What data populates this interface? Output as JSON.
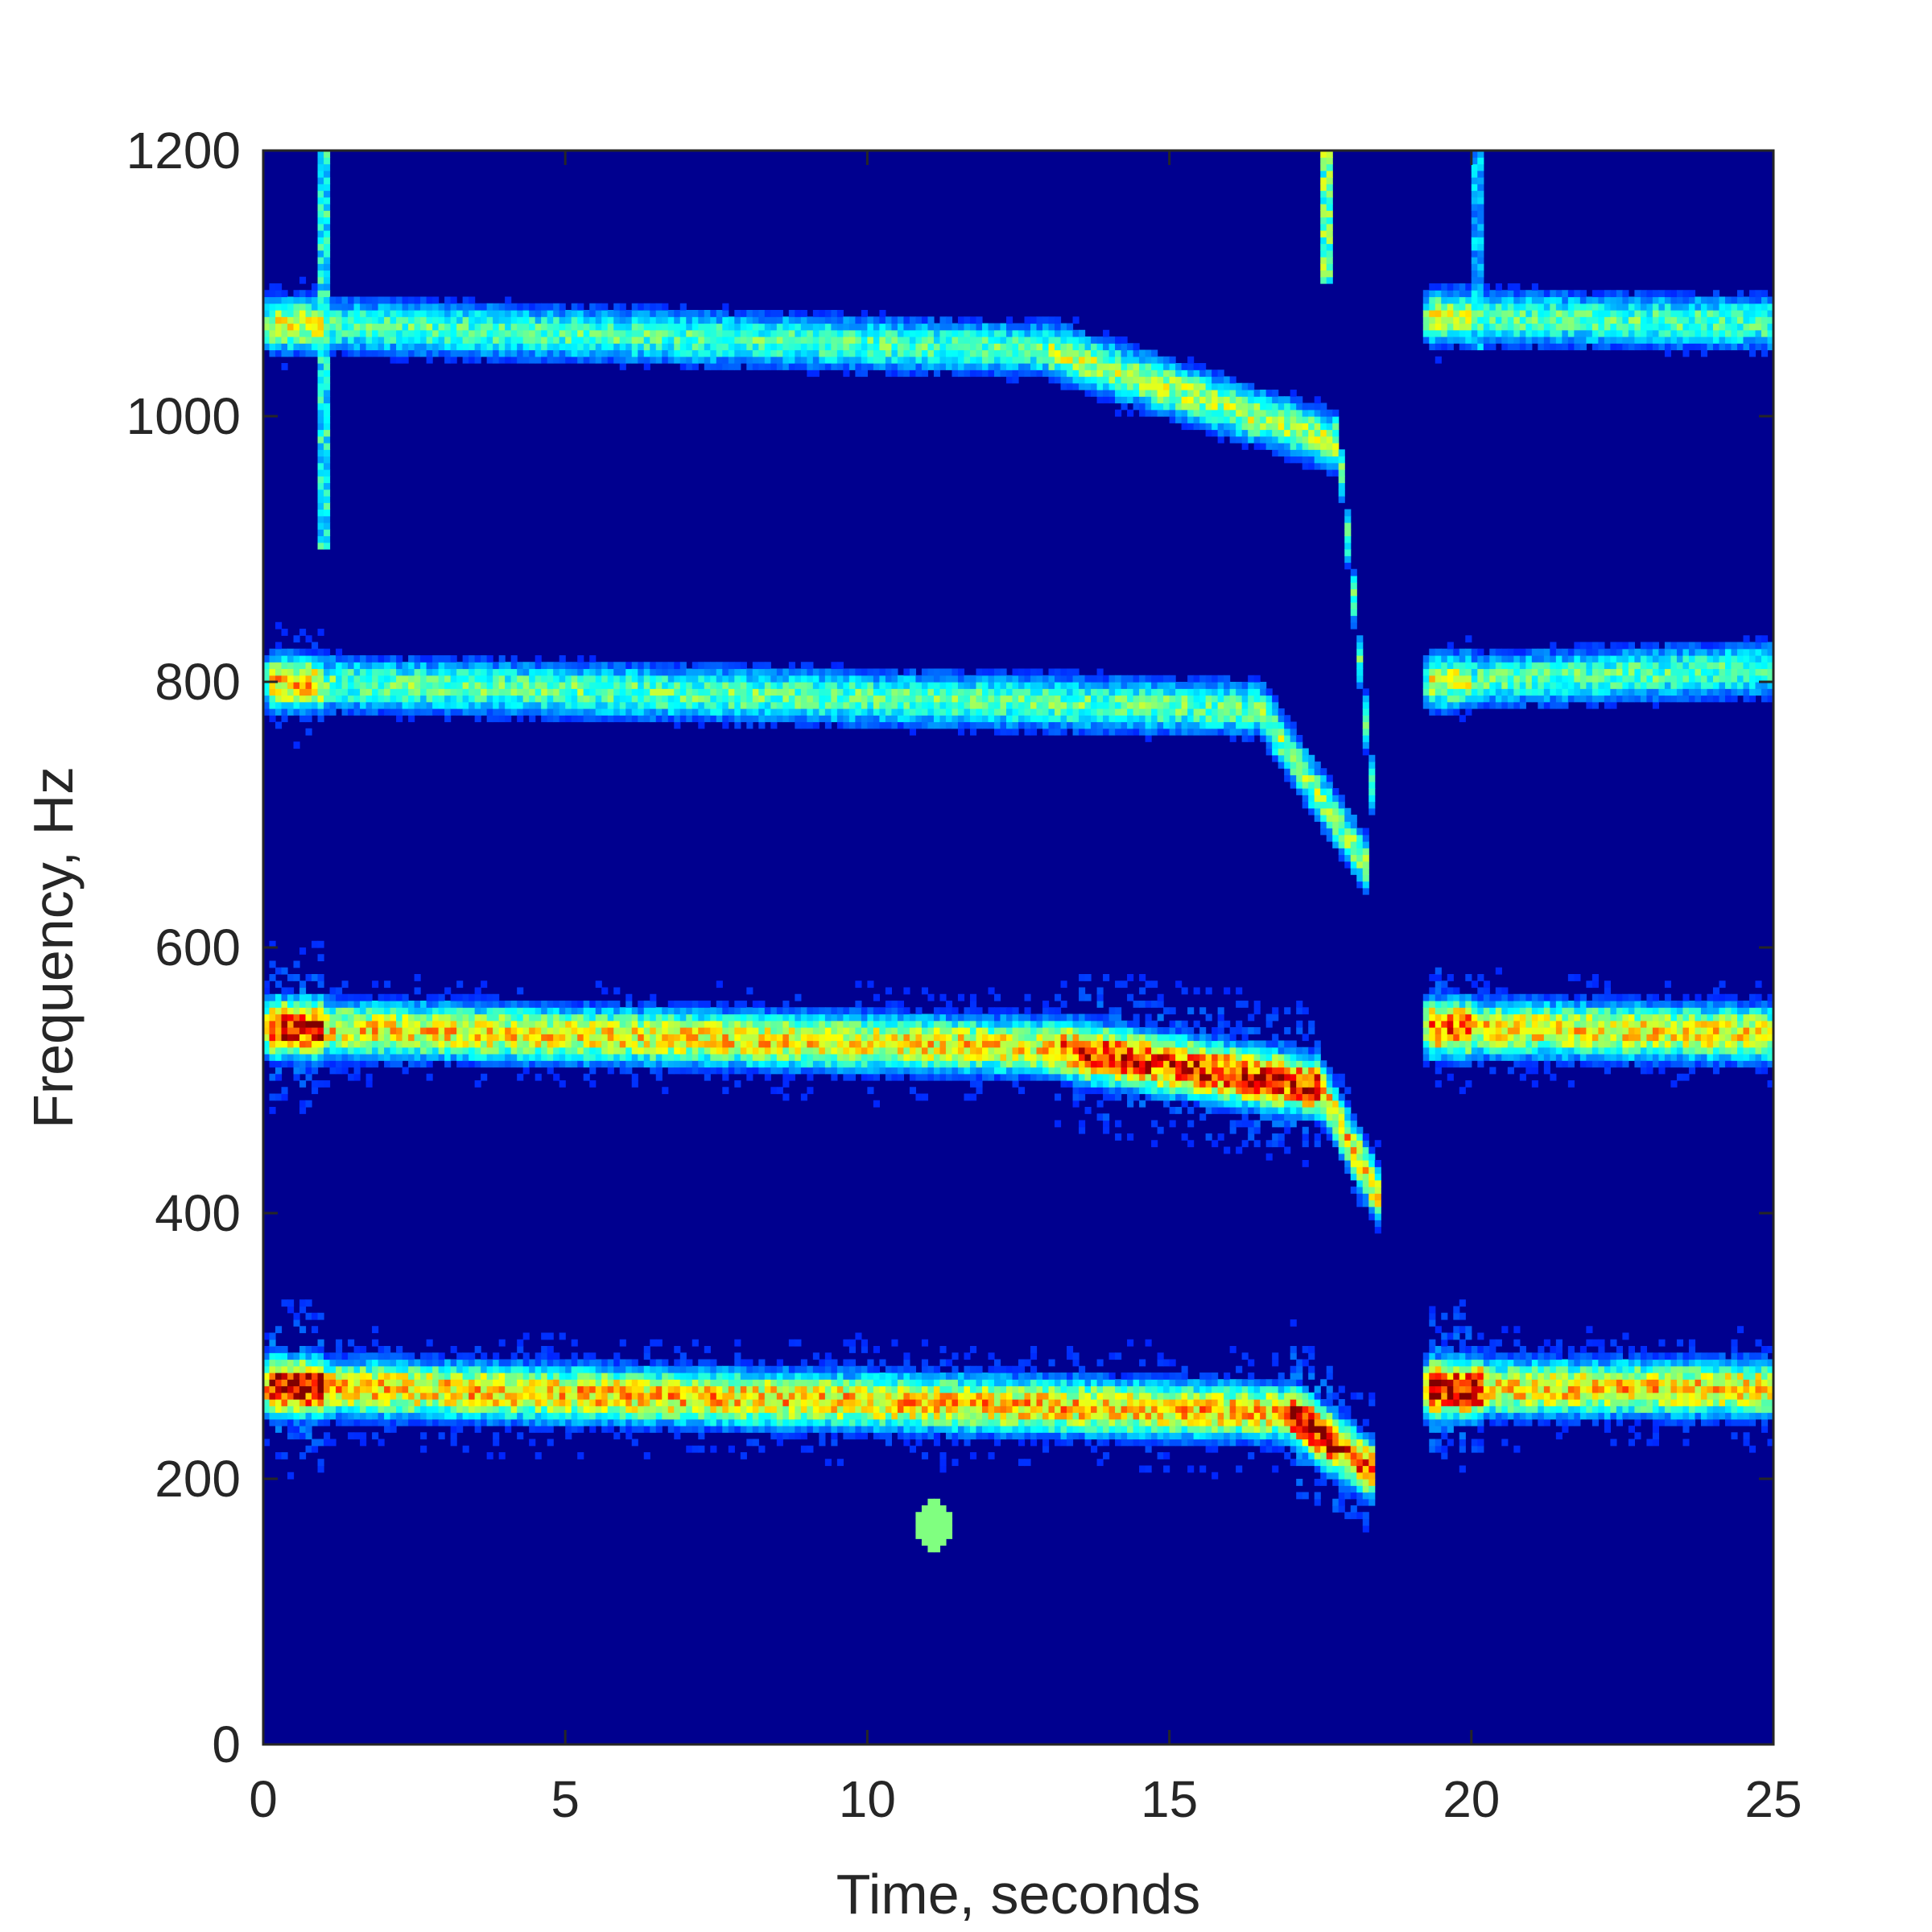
{
  "chart_data": {
    "type": "heatmap",
    "subtype": "spectrogram",
    "xlabel": "Time, seconds",
    "ylabel": "Frequency, Hz",
    "xlim": [
      0,
      25
    ],
    "ylim": [
      0,
      1200
    ],
    "xticks": [
      0,
      5,
      10,
      15,
      20,
      25
    ],
    "yticks": [
      0,
      200,
      400,
      600,
      800,
      1000,
      1200
    ],
    "xtick_labels": [
      "0",
      "5",
      "10",
      "15",
      "20",
      "25"
    ],
    "ytick_labels": [
      "0",
      "200",
      "400",
      "600",
      "800",
      "1000",
      "1200"
    ],
    "colormap": "jet",
    "background_color": "#00008f",
    "grid": false,
    "legend": "none",
    "features": [
      {
        "kind": "tonal",
        "t_start": 0,
        "t_end": 17.0,
        "f_start": 270,
        "f_end": 250,
        "intensity": 0.72,
        "peak": 1.0,
        "peak_range": [
          0.1,
          1.0
        ]
      },
      {
        "kind": "tonal",
        "t_start": 17.0,
        "t_end": 18.4,
        "f_start": 250,
        "f_end": 205,
        "intensity": 0.85,
        "peak": 1.0,
        "peak_range": [
          17.0,
          17.8
        ]
      },
      {
        "kind": "tonal",
        "t_start": 19.2,
        "t_end": 25,
        "f_start": 268,
        "f_end": 268,
        "intensity": 0.7,
        "peak": 1.0,
        "peak_range": [
          19.3,
          20.2
        ]
      },
      {
        "kind": "tonal",
        "t_start": 0,
        "t_end": 13.0,
        "f_start": 540,
        "f_end": 525,
        "intensity": 0.68,
        "peak": 0.95,
        "peak_range": [
          0.1,
          1.0
        ]
      },
      {
        "kind": "tonal",
        "t_start": 13.0,
        "t_end": 17.5,
        "f_start": 525,
        "f_end": 495,
        "intensity": 0.82,
        "peak": 0.92,
        "peak_range": [
          13.5,
          17.5
        ]
      },
      {
        "kind": "tonal",
        "t_start": 17.5,
        "t_end": 18.5,
        "f_start": 495,
        "f_end": 410,
        "intensity": 0.7,
        "peak": 0.7,
        "peak_range": [
          17.5,
          17.5
        ]
      },
      {
        "kind": "tonal",
        "t_start": 19.2,
        "t_end": 25,
        "f_start": 540,
        "f_end": 535,
        "intensity": 0.68,
        "peak": 0.85,
        "peak_range": [
          19.3,
          20.0
        ]
      },
      {
        "kind": "tonal",
        "t_start": 0,
        "t_end": 16.5,
        "f_start": 800,
        "f_end": 780,
        "intensity": 0.5,
        "peak": 0.7,
        "peak_range": [
          0.1,
          1.0
        ]
      },
      {
        "kind": "tonal",
        "t_start": 16.5,
        "t_end": 18.3,
        "f_start": 780,
        "f_end": 660,
        "intensity": 0.55,
        "peak": 0.55,
        "peak_range": [
          16.5,
          16.5
        ]
      },
      {
        "kind": "tonal",
        "t_start": 19.2,
        "t_end": 25,
        "f_start": 800,
        "f_end": 810,
        "intensity": 0.48,
        "peak": 0.62,
        "peak_range": [
          19.3,
          20.0
        ]
      },
      {
        "kind": "tonal",
        "t_start": 0,
        "t_end": 13.0,
        "f_start": 1070,
        "f_end": 1050,
        "intensity": 0.48,
        "peak": 0.62,
        "peak_range": [
          0.1,
          1.0
        ]
      },
      {
        "kind": "tonal",
        "t_start": 13.0,
        "t_end": 17.8,
        "f_start": 1050,
        "f_end": 980,
        "intensity": 0.58,
        "peak": 0.58,
        "peak_range": [
          13.0,
          13.0
        ]
      },
      {
        "kind": "tonal",
        "t_start": 17.8,
        "t_end": 18.4,
        "f_start": 980,
        "f_end": 700,
        "intensity": 0.5,
        "peak": 0.5,
        "peak_range": [
          17.8,
          17.8
        ]
      },
      {
        "kind": "tonal",
        "t_start": 19.2,
        "t_end": 25,
        "f_start": 1075,
        "f_end": 1070,
        "intensity": 0.48,
        "peak": 0.6,
        "peak_range": [
          19.3,
          20.0
        ]
      },
      {
        "kind": "transient",
        "t": 1.0,
        "f_min": 900,
        "f_max": 1200,
        "intensity": 0.45
      },
      {
        "kind": "transient",
        "t": 17.6,
        "f_min": 1100,
        "f_max": 1200,
        "intensity": 0.55
      },
      {
        "kind": "transient",
        "t": 20.1,
        "f_min": 1050,
        "f_max": 1200,
        "intensity": 0.35
      },
      {
        "kind": "spot",
        "t": 11.1,
        "f": 165,
        "intensity": 0.5
      },
      {
        "kind": "gap",
        "t_start": 18.5,
        "t_end": 19.1
      }
    ]
  }
}
